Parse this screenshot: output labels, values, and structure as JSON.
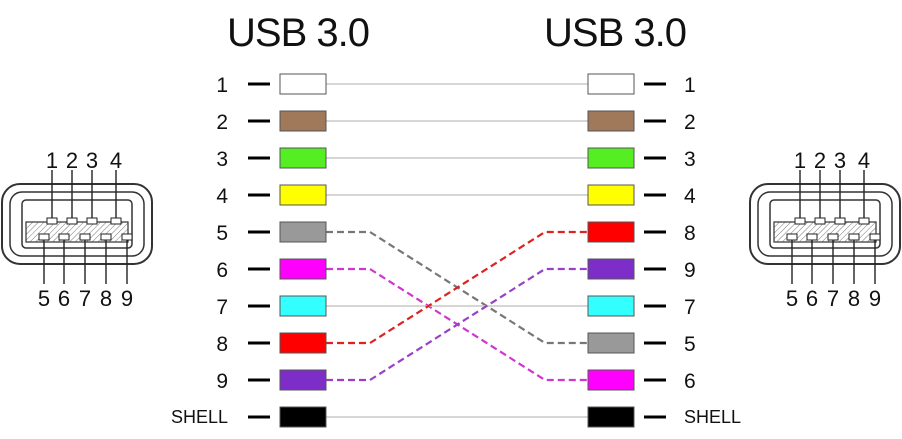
{
  "left_title": "USB 3.0",
  "right_title": "USB 3.0",
  "wires": [
    {
      "label": "1",
      "color": "#ffffff",
      "left_row": 1,
      "right_row": 1
    },
    {
      "label": "2",
      "color": "#a0785a",
      "left_row": 2,
      "right_row": 2
    },
    {
      "label": "3",
      "color": "#55ee22",
      "left_row": 3,
      "right_row": 3
    },
    {
      "label": "4",
      "color": "#ffff00",
      "left_row": 4,
      "right_row": 4
    },
    {
      "label": "5",
      "color": "#999999",
      "left_row": 5,
      "right_row": 8
    },
    {
      "label": "6",
      "color": "#ff00ff",
      "left_row": 6,
      "right_row": 9
    },
    {
      "label": "7",
      "color": "#33ffff",
      "left_row": 7,
      "right_row": 7
    },
    {
      "label": "8",
      "color": "#ff0000",
      "left_row": 8,
      "right_row": 5
    },
    {
      "label": "9",
      "color": "#7d2ec9",
      "left_row": 9,
      "right_row": 6
    },
    {
      "label": "SHELL",
      "color": "#000000",
      "left_row": 10,
      "right_row": 10
    }
  ],
  "line_colors": {
    "5": "#777777",
    "6": "#d035d0",
    "8": "#dd2222",
    "9": "#9a40c8"
  },
  "left_connector": {
    "top_pins": [
      "1",
      "2",
      "3",
      "4"
    ],
    "bottom_pins": [
      "5",
      "6",
      "7",
      "8",
      "9"
    ]
  },
  "right_connector": {
    "top_pins": [
      "1",
      "2",
      "3",
      "4"
    ],
    "bottom_pins": [
      "5",
      "6",
      "7",
      "8",
      "9"
    ]
  }
}
